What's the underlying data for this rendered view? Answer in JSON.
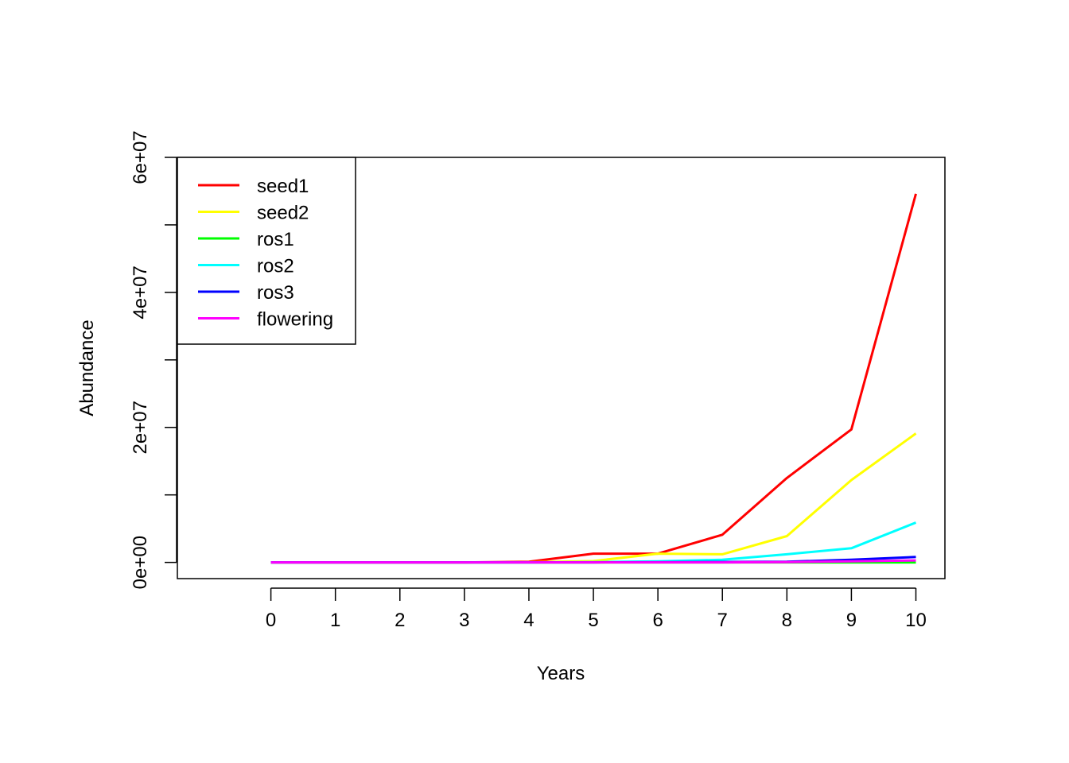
{
  "chart_data": {
    "type": "line",
    "title": "",
    "xlabel": "Years",
    "ylabel": "Abundance",
    "x": [
      0,
      1,
      2,
      3,
      4,
      5,
      6,
      7,
      8,
      9,
      10
    ],
    "xlim": [
      -1.45,
      10.45
    ],
    "ylim": [
      -2400000,
      60000000
    ],
    "xticks": [
      {
        "value": 0,
        "label": "0"
      },
      {
        "value": 1,
        "label": "1"
      },
      {
        "value": 2,
        "label": "2"
      },
      {
        "value": 3,
        "label": "3"
      },
      {
        "value": 4,
        "label": "4"
      },
      {
        "value": 5,
        "label": "5"
      },
      {
        "value": 6,
        "label": "6"
      },
      {
        "value": 7,
        "label": "7"
      },
      {
        "value": 8,
        "label": "8"
      },
      {
        "value": 9,
        "label": "9"
      },
      {
        "value": 10,
        "label": "10"
      }
    ],
    "yticks": [
      {
        "value": 0,
        "label": "0e+00"
      },
      {
        "value": 10000000,
        "label": ""
      },
      {
        "value": 20000000,
        "label": "2e+07"
      },
      {
        "value": 30000000,
        "label": ""
      },
      {
        "value": 40000000,
        "label": "4e+07"
      },
      {
        "value": 50000000,
        "label": ""
      },
      {
        "value": 60000000,
        "label": "6e+07"
      }
    ],
    "grid": false,
    "legend_position": "top-left",
    "series": [
      {
        "name": "seed1",
        "color": "#FF0000",
        "values": [
          0,
          0,
          0,
          0,
          100000,
          1300000,
          1300000,
          4100000,
          12500000,
          19700000,
          54600000
        ]
      },
      {
        "name": "seed2",
        "color": "#FFFF00",
        "values": [
          0,
          0,
          0,
          0,
          30000,
          200000,
          1300000,
          1200000,
          3900000,
          12200000,
          19100000
        ]
      },
      {
        "name": "ros1",
        "color": "#00FF00",
        "values": [
          0,
          0,
          0,
          0,
          0,
          0,
          0,
          0,
          0,
          0,
          0
        ]
      },
      {
        "name": "ros2",
        "color": "#00FFFF",
        "values": [
          0,
          0,
          0,
          0,
          0,
          50000,
          150000,
          400000,
          1200000,
          2100000,
          5900000
        ]
      },
      {
        "name": "ros3",
        "color": "#0000FF",
        "values": [
          0,
          0,
          0,
          0,
          0,
          0,
          30000,
          60000,
          100000,
          400000,
          800000
        ]
      },
      {
        "name": "flowering",
        "color": "#FF00FF",
        "values": [
          0,
          0,
          0,
          0,
          0,
          0,
          0,
          0,
          50000,
          150000,
          300000
        ]
      }
    ]
  }
}
